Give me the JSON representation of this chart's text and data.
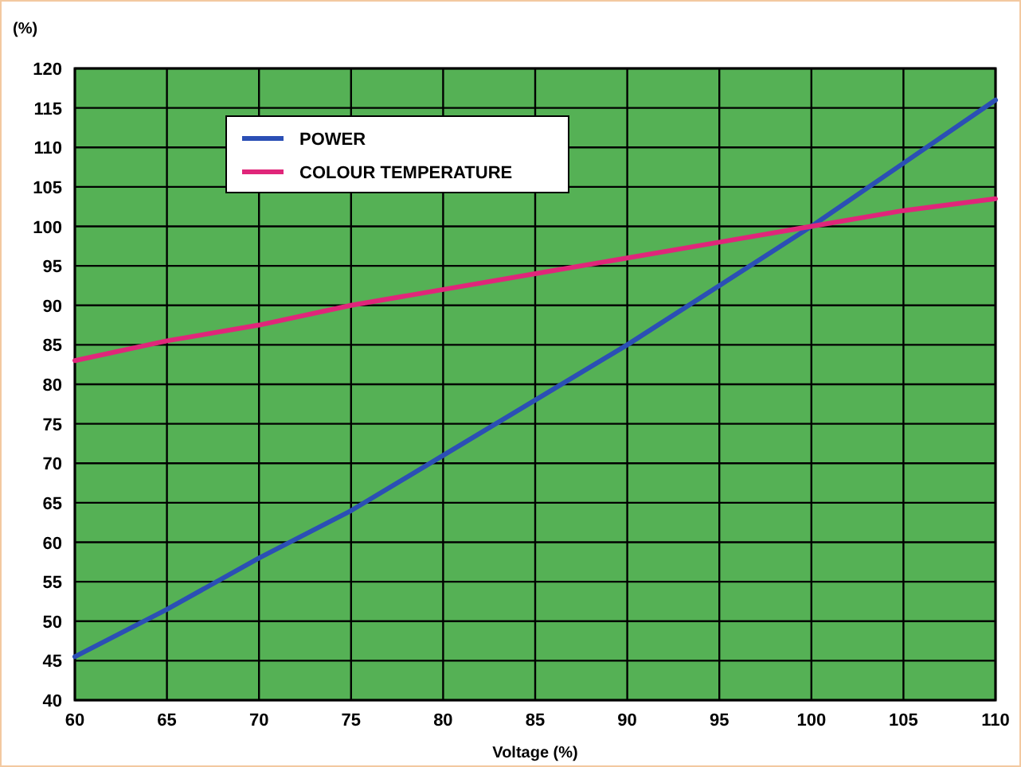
{
  "chart_data": {
    "type": "line",
    "xlabel": "Voltage (%)",
    "ylabel": "(%)",
    "x": [
      60,
      65,
      70,
      75,
      80,
      85,
      90,
      95,
      100,
      105,
      110
    ],
    "series": [
      {
        "name": "POWER",
        "color": "#2b4fb5",
        "values": [
          45.5,
          51.5,
          58,
          64,
          71,
          78,
          85,
          92.5,
          100,
          108,
          116
        ]
      },
      {
        "name": "COLOUR TEMPERATURE",
        "color": "#e0267a",
        "values": [
          83,
          85.5,
          87.5,
          90,
          92,
          94,
          96,
          98,
          100,
          102,
          103.5
        ]
      }
    ],
    "xlim": [
      60,
      110
    ],
    "xticks": [
      60,
      65,
      70,
      75,
      80,
      85,
      90,
      95,
      100,
      105,
      110
    ],
    "ylim": [
      40,
      120
    ],
    "yticks": [
      40,
      45,
      50,
      55,
      60,
      65,
      70,
      75,
      80,
      85,
      90,
      95,
      100,
      105,
      110,
      115,
      120
    ],
    "grid": true,
    "legend": "top left",
    "marker": "none",
    "line_style": "solid"
  }
}
